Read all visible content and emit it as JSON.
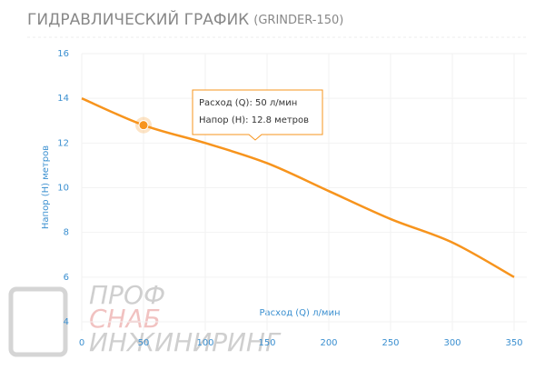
{
  "chart_data": {
    "type": "line",
    "title": "ГИДРАВЛИЧЕСКИЙ ГРАФИК",
    "subtitle": "(GRINDER-150)",
    "x_label": "Расход (Q) л/мин",
    "y_label": "Напор (H) метров",
    "x": [
      0,
      50,
      100,
      150,
      200,
      250,
      300,
      350
    ],
    "series": [
      {
        "name": "GRINDER-150",
        "color": "#f7941d",
        "values": [
          14,
          12.8,
          12.0,
          11.1,
          9.85,
          8.6,
          7.55,
          6.0
        ]
      }
    ],
    "xlim": [
      0,
      350
    ],
    "xticks": [
      0,
      50,
      100,
      150,
      200,
      250,
      300,
      350
    ],
    "ylim": [
      4,
      16
    ],
    "yticks": [
      4,
      6,
      8,
      10,
      12,
      14,
      16
    ],
    "grid": true,
    "tooltip": [
      "Расход (Q): 50 л/мин",
      "Напор (H):  12.8 метров"
    ],
    "watermark": [
      "ПРОФ",
      "СНАБ",
      "ИНЖИНИРИНГ"
    ]
  }
}
